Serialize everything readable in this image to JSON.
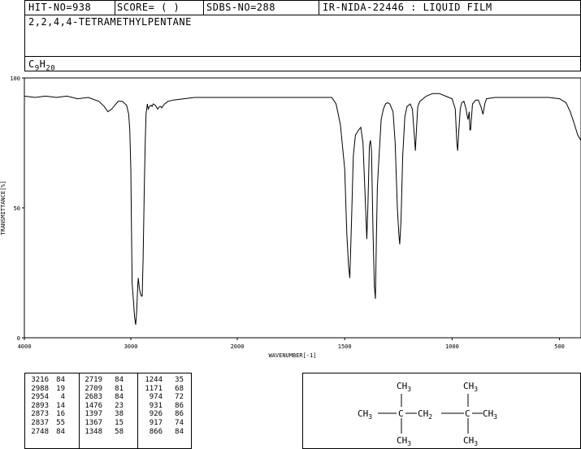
{
  "header": {
    "hit_no": "HIT-NO=938",
    "score": "SCORE=  (   )",
    "sdbs_no": "SDBS-NO=288",
    "ir_info": "IR-NIDA-22446 : LIQUID FILM",
    "compound_name": "2,2,4,4-TETRAMETHYLPENTANE",
    "formula_main": "C",
    "formula_sub1": "9",
    "formula_mid": "H",
    "formula_sub2": "20"
  },
  "chart_data": {
    "type": "line",
    "xlabel": "WAVENUMBER[-1]",
    "ylabel": "TRANSMITTANCE[%]",
    "xlim": [
      4000,
      400
    ],
    "ylim": [
      0,
      100
    ],
    "x_ticks": [
      4000,
      3000,
      2000,
      1500,
      1000,
      500
    ],
    "x_tick_labels": [
      "4000",
      "3000",
      "2000",
      "1500",
      "1000",
      "500"
    ],
    "y_ticks": [
      0,
      50,
      100
    ],
    "y_tick_labels": [
      "0",
      "50",
      "100"
    ],
    "grid": false,
    "series": [
      {
        "points": [
          [
            4000,
            93
          ],
          [
            3900,
            92.5
          ],
          [
            3800,
            93
          ],
          [
            3700,
            92.5
          ],
          [
            3600,
            93
          ],
          [
            3500,
            92
          ],
          [
            3400,
            92.5
          ],
          [
            3300,
            91
          ],
          [
            3250,
            89
          ],
          [
            3216,
            87
          ],
          [
            3180,
            88
          ],
          [
            3120,
            91
          ],
          [
            3080,
            91
          ],
          [
            3040,
            89.5
          ],
          [
            3020,
            86
          ],
          [
            3010,
            80
          ],
          [
            3000,
            65
          ],
          [
            2995,
            45
          ],
          [
            2988,
            21
          ],
          [
            2975,
            14
          ],
          [
            2965,
            8
          ],
          [
            2954,
            5
          ],
          [
            2945,
            10
          ],
          [
            2935,
            20
          ],
          [
            2930,
            23
          ],
          [
            2920,
            19
          ],
          [
            2910,
            17
          ],
          [
            2900,
            16
          ],
          [
            2893,
            16
          ],
          [
            2885,
            30
          ],
          [
            2873,
            58
          ],
          [
            2865,
            75
          ],
          [
            2857,
            86
          ],
          [
            2845,
            90
          ],
          [
            2837,
            88
          ],
          [
            2825,
            89
          ],
          [
            2810,
            89.5
          ],
          [
            2800,
            89
          ],
          [
            2790,
            90
          ],
          [
            2770,
            89.5
          ],
          [
            2748,
            88
          ],
          [
            2730,
            89
          ],
          [
            2719,
            89
          ],
          [
            2709,
            88.5
          ],
          [
            2683,
            90
          ],
          [
            2650,
            91
          ],
          [
            2600,
            91.5
          ],
          [
            2500,
            92
          ],
          [
            2400,
            92.5
          ],
          [
            2300,
            92.5
          ],
          [
            2200,
            92.5
          ],
          [
            2100,
            92.5
          ],
          [
            2000,
            92.5
          ],
          [
            1900,
            92.5
          ],
          [
            1800,
            92.5
          ],
          [
            1700,
            92.5
          ],
          [
            1600,
            92.5
          ],
          [
            1560,
            92.5
          ],
          [
            1540,
            90
          ],
          [
            1520,
            82
          ],
          [
            1500,
            65
          ],
          [
            1490,
            40
          ],
          [
            1482,
            28
          ],
          [
            1476,
            23
          ],
          [
            1468,
            45
          ],
          [
            1460,
            70
          ],
          [
            1450,
            78
          ],
          [
            1435,
            80
          ],
          [
            1425,
            81
          ],
          [
            1415,
            75
          ],
          [
            1405,
            55
          ],
          [
            1397,
            38
          ],
          [
            1392,
            50
          ],
          [
            1385,
            74
          ],
          [
            1380,
            76
          ],
          [
            1375,
            72
          ],
          [
            1368,
            40
          ],
          [
            1362,
            20
          ],
          [
            1357,
            15
          ],
          [
            1352,
            40
          ],
          [
            1348,
            58
          ],
          [
            1340,
            70
          ],
          [
            1330,
            84
          ],
          [
            1320,
            88
          ],
          [
            1310,
            90
          ],
          [
            1300,
            90.5
          ],
          [
            1290,
            90
          ],
          [
            1275,
            87
          ],
          [
            1265,
            75
          ],
          [
            1255,
            50
          ],
          [
            1248,
            40
          ],
          [
            1244,
            36
          ],
          [
            1238,
            45
          ],
          [
            1230,
            70
          ],
          [
            1220,
            85
          ],
          [
            1210,
            89
          ],
          [
            1195,
            90
          ],
          [
            1185,
            88
          ],
          [
            1175,
            77
          ],
          [
            1171,
            72
          ],
          [
            1166,
            80
          ],
          [
            1160,
            89
          ],
          [
            1150,
            91
          ],
          [
            1120,
            93
          ],
          [
            1090,
            94
          ],
          [
            1060,
            94
          ],
          [
            1030,
            93
          ],
          [
            1000,
            92
          ],
          [
            985,
            88
          ],
          [
            978,
            75
          ],
          [
            974,
            72
          ],
          [
            970,
            78
          ],
          [
            962,
            88
          ],
          [
            955,
            90.5
          ],
          [
            945,
            91
          ],
          [
            935,
            88
          ],
          [
            931,
            86
          ],
          [
            926,
            84
          ],
          [
            920,
            87
          ],
          [
            917,
            80
          ],
          [
            914,
            80
          ],
          [
            905,
            90
          ],
          [
            890,
            91.5
          ],
          [
            878,
            91.5
          ],
          [
            866,
            89
          ],
          [
            856,
            86
          ],
          [
            848,
            90
          ],
          [
            840,
            92
          ],
          [
            800,
            92.5
          ],
          [
            750,
            92.5
          ],
          [
            700,
            92.5
          ],
          [
            650,
            92.5
          ],
          [
            600,
            92.5
          ],
          [
            550,
            92.5
          ],
          [
            500,
            92
          ],
          [
            470,
            90.5
          ],
          [
            450,
            87
          ],
          [
            430,
            82
          ],
          [
            415,
            78
          ],
          [
            400,
            76
          ]
        ]
      }
    ]
  },
  "peaks": [
    [
      "3216",
      "84",
      "2719",
      "84",
      "1244",
      "35"
    ],
    [
      "2988",
      "19",
      "2709",
      "81",
      "1171",
      "68"
    ],
    [
      "2954",
      "4",
      "2683",
      "84",
      "974",
      "72"
    ],
    [
      "2893",
      "14",
      "1476",
      "23",
      "931",
      "86"
    ],
    [
      "2873",
      "16",
      "1397",
      "38",
      "926",
      "86"
    ],
    [
      "2837",
      "55",
      "1367",
      "15",
      "917",
      "74"
    ],
    [
      "2748",
      "84",
      "1348",
      "58",
      "866",
      "84"
    ]
  ],
  "structure": {
    "top_left": "CH",
    "top_left_sub": "3",
    "top_right": "CH",
    "top_right_sub": "3",
    "left": "CH",
    "left_sub": "3",
    "center_left": "C",
    "middle": "CH",
    "middle_sub": "2",
    "center_right": "C",
    "right": "CH",
    "right_sub": "3",
    "bottom_left": "CH",
    "bottom_left_sub": "3",
    "bottom_right": "CH",
    "bottom_right_sub": "3"
  }
}
